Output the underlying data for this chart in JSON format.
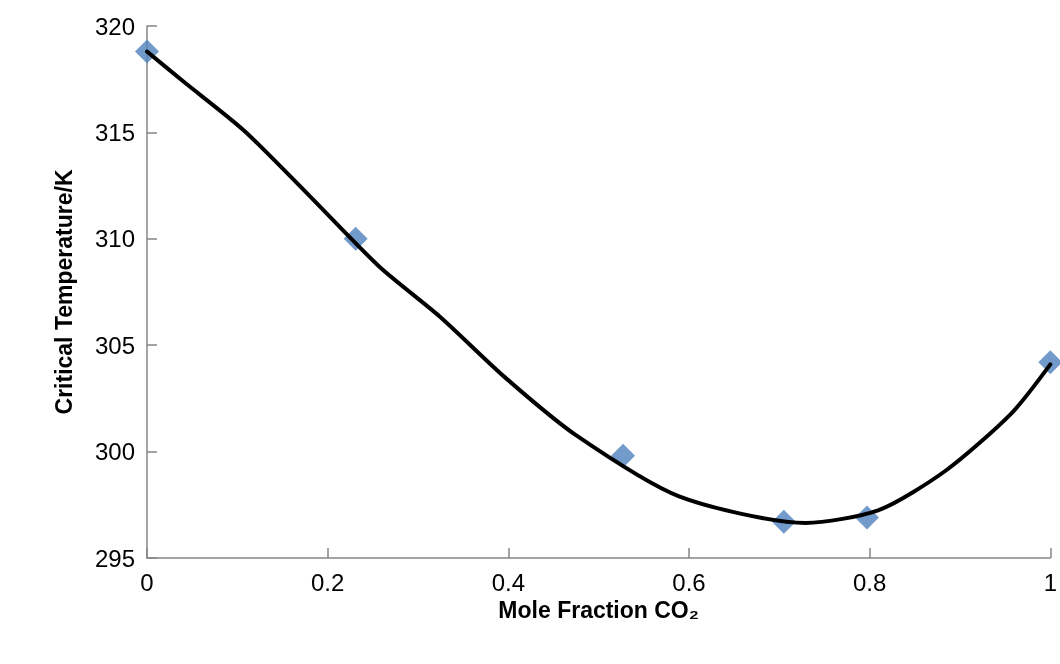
{
  "chart_data": {
    "type": "scatter",
    "xlabel": "Mole Fraction CO₂",
    "ylabel": "Critical Temperature/K",
    "xlim": [
      0,
      1
    ],
    "xticks": [
      0,
      0.2,
      0.4,
      0.6,
      0.8,
      1
    ],
    "ylim": [
      295,
      320
    ],
    "yticks": [
      295,
      300,
      305,
      310,
      315,
      320
    ],
    "grid": false,
    "series": [
      {
        "color": "#4f81bd",
        "marker": "diamond",
        "x": [
          0,
          0.231,
          0.527,
          0.705,
          0.797,
          1
        ],
        "values": [
          318.8,
          310.0,
          299.8,
          296.7,
          296.9,
          304.2
        ]
      },
      {
        "type": "line",
        "color": "#000000",
        "marker": "none",
        "line_style": "solid",
        "x": [
          0,
          0.04,
          0.107,
          0.178,
          0.257,
          0.324,
          0.396,
          0.474,
          0.589,
          0.729,
          0.81,
          0.884,
          0.957,
          1
        ],
        "values": [
          318.8,
          317.4,
          315.1,
          312.1,
          308.7,
          306.35,
          303.5,
          300.8,
          297.9,
          296.65,
          297.25,
          299.1,
          301.8,
          304.1
        ]
      }
    ]
  }
}
